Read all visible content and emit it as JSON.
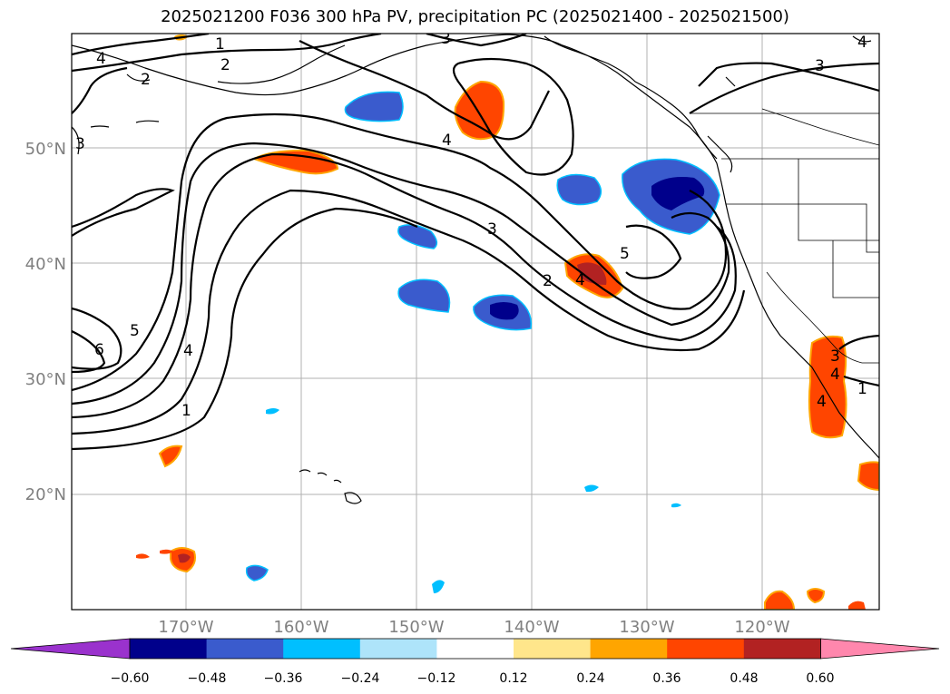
{
  "title": "2025021200 F036 300 hPa PV, precipitation PC (2025021400 - 2025021500)",
  "map": {
    "lat_labels": [
      "50°N",
      "40°N",
      "30°N",
      "20°N"
    ],
    "lon_labels": [
      "170°W",
      "160°W",
      "150°W",
      "140°W",
      "130°W",
      "120°W"
    ],
    "gridlines": true,
    "contour_field": "300 hPa PV",
    "contour_labels": [
      "1",
      "2",
      "3",
      "4",
      "5",
      "6",
      "4",
      "2",
      "3",
      "4",
      "5",
      "1",
      "3",
      "4",
      "3",
      "2",
      "4",
      "1",
      "4",
      "3",
      "4"
    ]
  },
  "colorbar": {
    "ticks": [
      "−0.60",
      "−0.48",
      "−0.36",
      "−0.24",
      "−0.12",
      "0.12",
      "0.24",
      "0.36",
      "0.48",
      "0.60"
    ],
    "colors": [
      "#9a32cd",
      "#00008b",
      "#3a5bcd",
      "#00bfff",
      "#aee4fa",
      "#ffffff",
      "#ffe68b",
      "#ffa500",
      "#ff4500",
      "#b22222",
      "#ff87ad"
    ],
    "extend": "both"
  },
  "colors": {
    "frame": "#000000",
    "grid": "#b0b0b0",
    "tick_label": "#808080"
  }
}
